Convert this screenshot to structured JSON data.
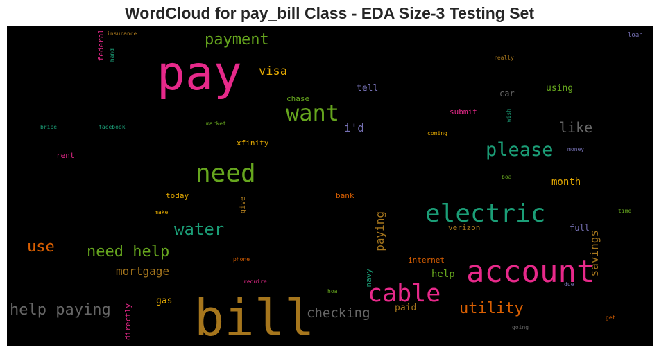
{
  "chart_data": {
    "type": "wordcloud",
    "title": "WordCloud for pay_bill Class - EDA Size-3 Testing Set",
    "background": "#000000",
    "palette": [
      "#e7298a",
      "#a6761d",
      "#66a61e",
      "#1b9e77",
      "#d95f02",
      "#e6ab02",
      "#7570b3",
      "#666666"
    ],
    "words": [
      {
        "text": "pay",
        "color": "#e7298a"
      },
      {
        "text": "bill",
        "color": "#a6761d"
      },
      {
        "text": "account",
        "color": "#e7298a"
      },
      {
        "text": "electric",
        "color": "#1b9e77"
      },
      {
        "text": "need",
        "color": "#66a61e"
      },
      {
        "text": "cable",
        "color": "#e7298a"
      },
      {
        "text": "want",
        "color": "#66a61e"
      },
      {
        "text": "please",
        "color": "#1b9e77"
      },
      {
        "text": "water",
        "color": "#1b9e77"
      },
      {
        "text": "need help",
        "color": "#66a61e"
      },
      {
        "text": "help paying",
        "color": "#666666"
      },
      {
        "text": "payment",
        "color": "#66a61e"
      },
      {
        "text": "utility",
        "color": "#d95f02"
      },
      {
        "text": "use",
        "color": "#d95f02"
      },
      {
        "text": "checking",
        "color": "#666666"
      },
      {
        "text": "like",
        "color": "#666666"
      },
      {
        "text": "visa",
        "color": "#e6ab02"
      },
      {
        "text": "mortgage",
        "color": "#a6761d"
      },
      {
        "text": "i'd",
        "color": "#7570b3"
      },
      {
        "text": "paying",
        "color": "#a6761d"
      },
      {
        "text": "savings",
        "color": "#a6761d"
      },
      {
        "text": "month",
        "color": "#e6ab02"
      },
      {
        "text": "help",
        "color": "#66a61e"
      },
      {
        "text": "tell",
        "color": "#7570b3"
      },
      {
        "text": "using",
        "color": "#66a61e"
      },
      {
        "text": "gas",
        "color": "#e6ab02"
      },
      {
        "text": "paid",
        "color": "#a6761d"
      },
      {
        "text": "car",
        "color": "#666666"
      },
      {
        "text": "full",
        "color": "#7570b3"
      },
      {
        "text": "chase",
        "color": "#66a61e"
      },
      {
        "text": "submit",
        "color": "#e7298a"
      },
      {
        "text": "xfinity",
        "color": "#e6ab02"
      },
      {
        "text": "today",
        "color": "#e6ab02"
      },
      {
        "text": "bank",
        "color": "#d95f02"
      },
      {
        "text": "verizon",
        "color": "#a6761d"
      },
      {
        "text": "internet",
        "color": "#d95f02"
      },
      {
        "text": "navy",
        "color": "#1b9e77"
      },
      {
        "text": "directly",
        "color": "#e7298a"
      },
      {
        "text": "federal",
        "color": "#e7298a"
      },
      {
        "text": "rent",
        "color": "#e7298a"
      },
      {
        "text": "give",
        "color": "#a6761d"
      },
      {
        "text": "insurance",
        "color": "#a6761d"
      },
      {
        "text": "hand",
        "color": "#1b9e77"
      },
      {
        "text": "loan",
        "color": "#7570b3"
      },
      {
        "text": "really",
        "color": "#a6761d"
      },
      {
        "text": "wish",
        "color": "#1b9e77"
      },
      {
        "text": "coming",
        "color": "#e6ab02"
      },
      {
        "text": "money",
        "color": "#7570b3"
      },
      {
        "text": "boa",
        "color": "#66a61e"
      },
      {
        "text": "time",
        "color": "#66a61e"
      },
      {
        "text": "due",
        "color": "#7570b3"
      },
      {
        "text": "get",
        "color": "#d95f02"
      },
      {
        "text": "going",
        "color": "#666666"
      },
      {
        "text": "hoa",
        "color": "#66a61e"
      },
      {
        "text": "require",
        "color": "#e7298a"
      },
      {
        "text": "phone",
        "color": "#d95f02"
      },
      {
        "text": "make",
        "color": "#e6ab02"
      },
      {
        "text": "market",
        "color": "#66a61e"
      },
      {
        "text": "bribe",
        "color": "#1b9e77"
      },
      {
        "text": "facebook",
        "color": "#1b9e77"
      }
    ]
  }
}
